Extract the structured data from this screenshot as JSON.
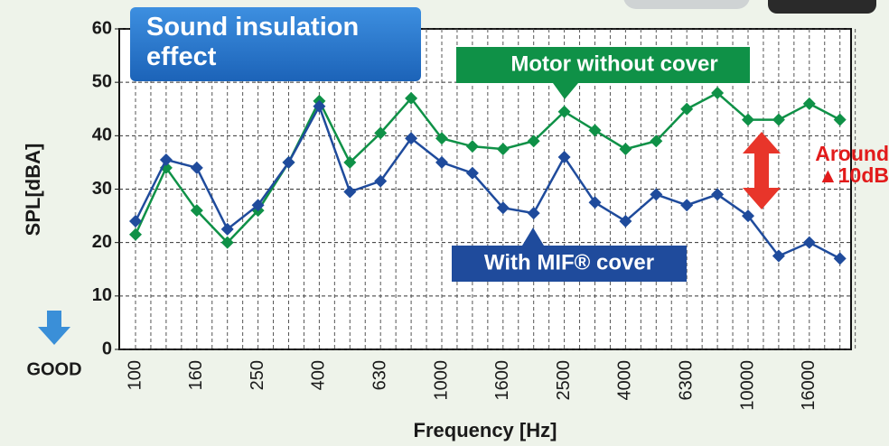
{
  "chart_data": {
    "type": "line",
    "title": "Sound insulation effect",
    "xlabel": "Frequency [Hz]",
    "ylabel": "SPL[dBA]",
    "annotations": [
      "Around ▲10dB",
      "GOOD"
    ],
    "categories": [
      "100",
      null,
      "160",
      null,
      "250",
      null,
      "400",
      null,
      "630",
      null,
      "1000",
      null,
      "1600",
      null,
      "2500",
      null,
      "4000",
      null,
      "6300",
      null,
      "10000",
      null,
      "16000",
      null
    ],
    "series": [
      {
        "name": "Motor without cover",
        "color": "#0f9147",
        "values": [
          21.5,
          34,
          26,
          20,
          26,
          35,
          46.5,
          35,
          40.5,
          47,
          39.5,
          38,
          37.5,
          39,
          44.5,
          41,
          37.5,
          39,
          45,
          48,
          43,
          43,
          46,
          43
        ]
      },
      {
        "name": "With MIF® cover",
        "color": "#1f4b9c",
        "values": [
          24,
          35.5,
          34,
          22.5,
          27,
          35,
          45.5,
          29.5,
          31.5,
          39.5,
          35,
          33,
          26.5,
          25.5,
          36,
          27.5,
          24,
          29,
          27,
          29,
          25,
          17.5,
          20,
          17
        ]
      }
    ],
    "ylim": [
      0,
      60
    ],
    "yticks": [
      0,
      10,
      20,
      30,
      40,
      50,
      60
    ],
    "grid": true
  }
}
